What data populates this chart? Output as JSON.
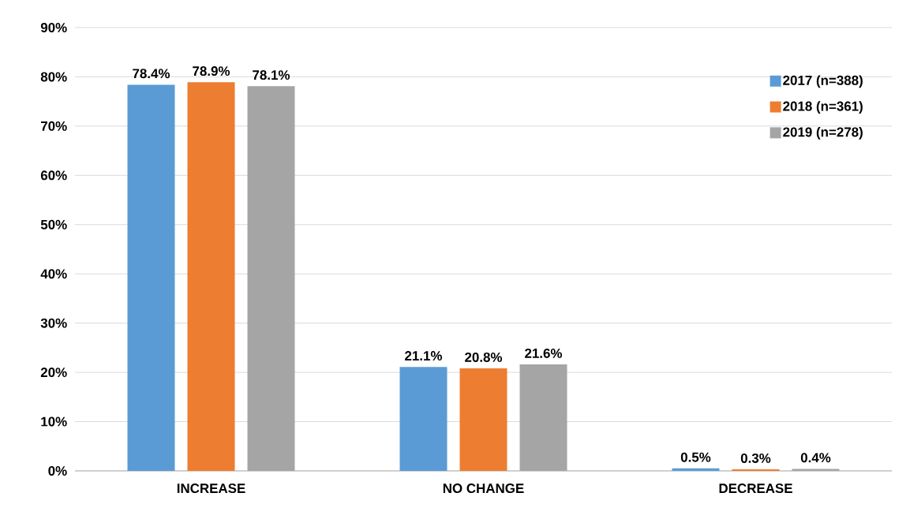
{
  "chart_data": {
    "type": "bar",
    "categories": [
      "INCREASE",
      "NO CHANGE",
      "DECREASE"
    ],
    "series": [
      {
        "name": "2017 (n=388)",
        "color": "#5b9bd5",
        "values": [
          78.4,
          21.1,
          0.5
        ],
        "value_labels": [
          "78.4%",
          "21.1%",
          "0.5%"
        ]
      },
      {
        "name": "2018 (n=361)",
        "color": "#ed7d31",
        "values": [
          78.9,
          20.8,
          0.3
        ],
        "value_labels": [
          "78.9%",
          "20.8%",
          "0.3%"
        ]
      },
      {
        "name": "2019 (n=278)",
        "color": "#a5a5a5",
        "values": [
          78.1,
          21.6,
          0.4
        ],
        "value_labels": [
          "78.1%",
          "21.6%",
          "0.4%"
        ]
      }
    ],
    "ylim": [
      0,
      90
    ],
    "yticks": [
      {
        "value": 0,
        "label": "0%"
      },
      {
        "value": 10,
        "label": "10%"
      },
      {
        "value": 20,
        "label": "20%"
      },
      {
        "value": 30,
        "label": "30%"
      },
      {
        "value": 40,
        "label": "40%"
      },
      {
        "value": 50,
        "label": "50%"
      },
      {
        "value": 60,
        "label": "60%"
      },
      {
        "value": 70,
        "label": "70%"
      },
      {
        "value": 80,
        "label": "80%"
      },
      {
        "value": 90,
        "label": "90%"
      }
    ],
    "grid": "y",
    "legend": "top right"
  }
}
